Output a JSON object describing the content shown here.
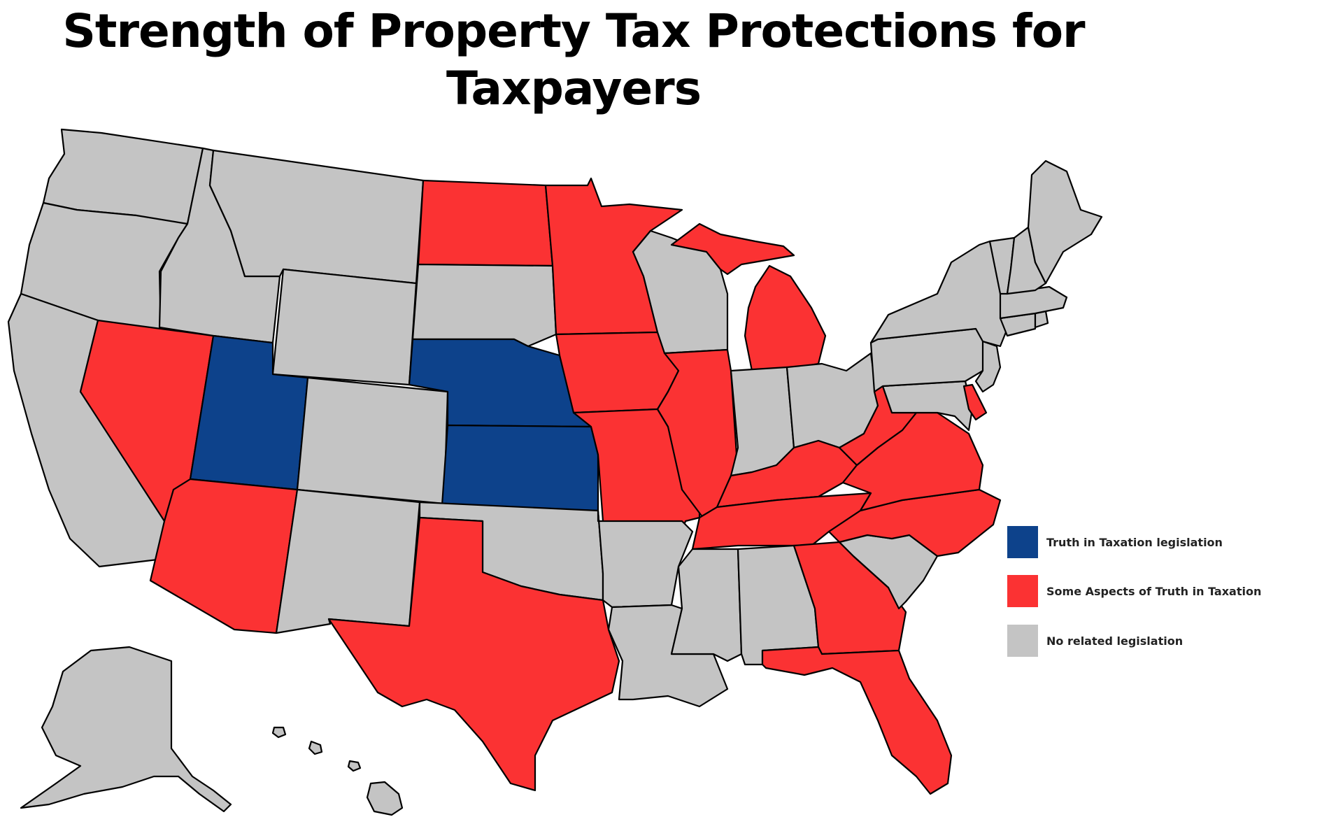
{
  "title": "Strength of Property Tax Protections for Taxpayers",
  "colors": {
    "truth": "#0d428b",
    "some": "#fb3233",
    "none": "#c4c4c4"
  },
  "legend": [
    {
      "key": "truth",
      "label": "Truth in Taxation legislation"
    },
    {
      "key": "some",
      "label": "Some Aspects of Truth in Taxation"
    },
    {
      "key": "none",
      "label": "No related legislation"
    }
  ],
  "states": {
    "WA": "none",
    "OR": "none",
    "CA": "none",
    "NV": "some",
    "ID": "none",
    "MT": "none",
    "WY": "none",
    "UT": "truth",
    "AZ": "some",
    "CO": "none",
    "NM": "none",
    "ND": "some",
    "SD": "none",
    "NE": "truth",
    "KS": "truth",
    "OK": "none",
    "TX": "some",
    "MN": "some",
    "IA": "some",
    "MO": "some",
    "AR": "none",
    "LA": "none",
    "WI": "none",
    "IL": "some",
    "MI": "some",
    "IN": "none",
    "OH": "none",
    "KY": "some",
    "TN": "some",
    "MS": "none",
    "AL": "none",
    "GA": "some",
    "FL": "some",
    "SC": "none",
    "NC": "some",
    "VA": "some",
    "WV": "some",
    "MD": "none",
    "DE": "some",
    "PA": "none",
    "NJ": "none",
    "NY": "none",
    "CT": "none",
    "RI": "none",
    "MA": "none",
    "VT": "none",
    "NH": "none",
    "ME": "none",
    "AK": "none",
    "HI": "none"
  }
}
